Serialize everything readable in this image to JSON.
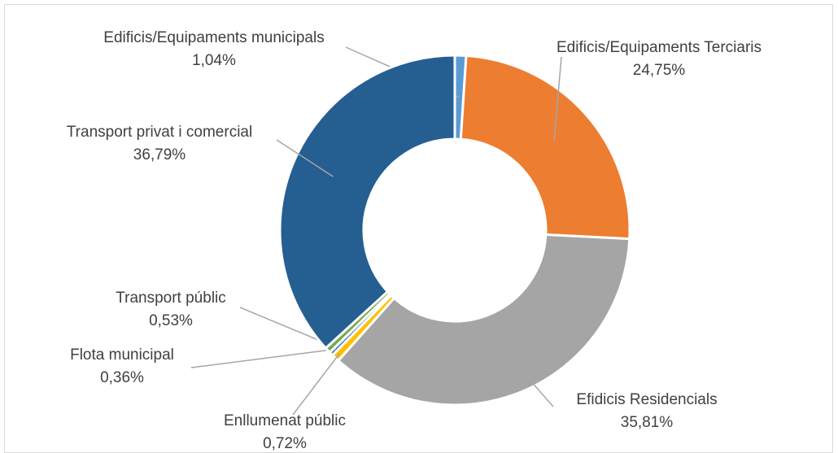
{
  "chart_data": {
    "type": "pie",
    "style": "donut",
    "title": "",
    "slices": [
      {
        "label": "Edificis/Equipaments municipals",
        "value_text": "1,04%",
        "value": 1.04,
        "color": "#5b9bd5"
      },
      {
        "label": "Edificis/Equipaments Terciaris",
        "value_text": "24,75%",
        "value": 24.75,
        "color": "#ed7d31"
      },
      {
        "label": "Efidicis Residencials",
        "value_text": "35,81%",
        "value": 35.81,
        "color": "#a5a5a5"
      },
      {
        "label": "Enllumenat públic",
        "value_text": "0,72%",
        "value": 0.72,
        "color": "#ffc000"
      },
      {
        "label": "Flota municipal",
        "value_text": "0,36%",
        "value": 0.36,
        "color": "#4472c4"
      },
      {
        "label": "Transport públic",
        "value_text": "0,53%",
        "value": 0.53,
        "color": "#70ad47"
      },
      {
        "label": "Transport privat i comercial",
        "value_text": "36,79%",
        "value": 36.79,
        "color": "#255e91"
      }
    ],
    "legend": "none"
  }
}
